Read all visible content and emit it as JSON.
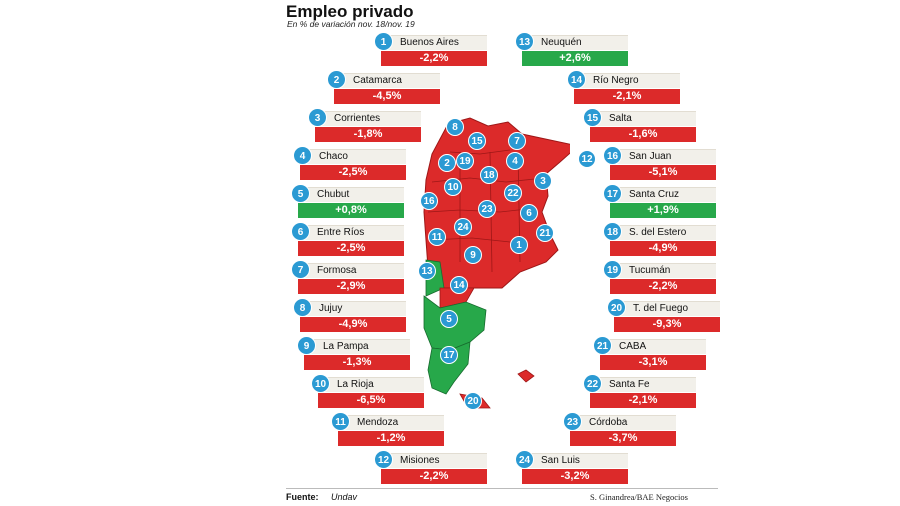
{
  "header": {
    "title": "Empleo privado",
    "subtitle": "En % de variación nov. 18/nov. 19"
  },
  "provinces": [
    {
      "num": "1",
      "name": "Buenos Aires",
      "value": "-2,2%",
      "positive": false
    },
    {
      "num": "2",
      "name": "Catamarca",
      "value": "-4,5%",
      "positive": false
    },
    {
      "num": "3",
      "name": "Corrientes",
      "value": "-1,8%",
      "positive": false
    },
    {
      "num": "4",
      "name": "Chaco",
      "value": "-2,5%",
      "positive": false
    },
    {
      "num": "5",
      "name": "Chubut",
      "value": "+0,8%",
      "positive": true
    },
    {
      "num": "6",
      "name": "Entre Ríos",
      "value": "-2,5%",
      "positive": false
    },
    {
      "num": "7",
      "name": "Formosa",
      "value": "-2,9%",
      "positive": false
    },
    {
      "num": "8",
      "name": "Jujuy",
      "value": "-4,9%",
      "positive": false
    },
    {
      "num": "9",
      "name": "La Pampa",
      "value": "-1,3%",
      "positive": false
    },
    {
      "num": "10",
      "name": "La Rioja",
      "value": "-6,5%",
      "positive": false
    },
    {
      "num": "11",
      "name": "Mendoza",
      "value": "-1,2%",
      "positive": false
    },
    {
      "num": "12",
      "name": "Misiones",
      "value": "-2,2%",
      "positive": false
    },
    {
      "num": "13",
      "name": "Neuquén",
      "value": "+2,6%",
      "positive": true
    },
    {
      "num": "14",
      "name": "Río Negro",
      "value": "-2,1%",
      "positive": false
    },
    {
      "num": "15",
      "name": "Salta",
      "value": "-1,6%",
      "positive": false
    },
    {
      "num": "16",
      "name": "San Juan",
      "value": "-5,1%",
      "positive": false
    },
    {
      "num": "17",
      "name": "Santa Cruz",
      "value": "+1,9%",
      "positive": true
    },
    {
      "num": "18",
      "name": "S. del Estero",
      "value": "-4,9%",
      "positive": false
    },
    {
      "num": "19",
      "name": "Tucumán",
      "value": "-2,2%",
      "positive": false
    },
    {
      "num": "20",
      "name": "T. del Fuego",
      "value": "-9,3%",
      "positive": false
    },
    {
      "num": "21",
      "name": "CABA",
      "value": "-3,1%",
      "positive": false
    },
    {
      "num": "22",
      "name": "Santa Fe",
      "value": "-2,1%",
      "positive": false
    },
    {
      "num": "23",
      "name": "Córdoba",
      "value": "-3,7%",
      "positive": false
    },
    {
      "num": "24",
      "name": "San Luis",
      "value": "-3,2%",
      "positive": false
    }
  ],
  "colors": {
    "negative": "#dc2a2a",
    "positive": "#27a84a",
    "marker": "#2b9ad3"
  },
  "footer": {
    "source_label": "Fuente:",
    "source": "Undav",
    "credit": "S. Ginandrea/BAE Negocios"
  }
}
